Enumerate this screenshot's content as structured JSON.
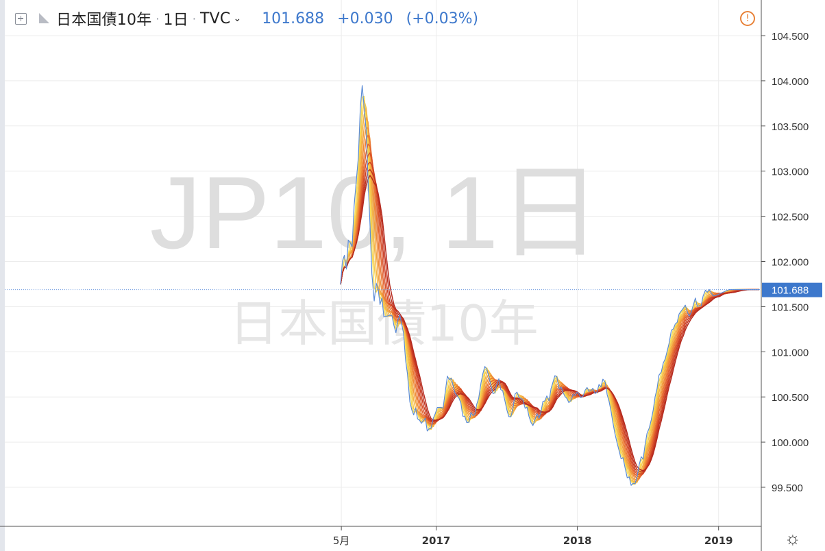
{
  "header": {
    "add_icon": "plus-square-icon",
    "flag_icon": "flag-icon",
    "symbol": "日本国債10年",
    "interval": "1日",
    "exchange": "TVC",
    "dropdown_icon": "chevron-down-icon",
    "last": "101.688",
    "change": "+0.030",
    "change_pct": "(+0.03%)",
    "alert_icon": "warning-circle-icon"
  },
  "watermark": {
    "line1": "JP10, 1日",
    "line2": "日本国債10年"
  },
  "price_axis": {
    "ticks": [
      "104.500",
      "104.000",
      "103.500",
      "103.000",
      "102.500",
      "102.000",
      "101.500",
      "101.000",
      "100.500",
      "100.000",
      "99.500"
    ],
    "current": "101.688"
  },
  "time_axis": {
    "ticks": [
      "5月",
      "2017",
      "2018",
      "2019"
    ]
  },
  "settings_icon": "gear-icon",
  "colors": {
    "price": "#5b8bd6",
    "accent": "#3d78cc",
    "ribbon_fast": "#f7dd55",
    "ribbon_slow": "#b52a1f",
    "alert": "#e8833a"
  },
  "chart_data": {
    "type": "line",
    "title": "日本国債10年",
    "ylim": [
      99.2,
      104.7
    ],
    "x_ticks": [
      "5月",
      "2017",
      "2018",
      "2019"
    ],
    "y_ticks": [
      104.5,
      104.0,
      103.5,
      103.0,
      102.5,
      102.0,
      101.5,
      101.0,
      100.5,
      100.0,
      99.5
    ],
    "last_value": 101.688,
    "series": [
      {
        "x": [
          "2016-04-29",
          "2016-05-04",
          "2016-05-09",
          "2016-05-14",
          "2016-05-19",
          "2016-05-24",
          "2016-05-29",
          "2016-06-03",
          "2016-06-09",
          "2016-06-14",
          "2016-06-19",
          "2016-06-24",
          "2016-06-29",
          "2016-07-04",
          "2016-07-09",
          "2016-07-14",
          "2016-07-19",
          "2016-07-25",
          "2016-07-30",
          "2016-08-04",
          "2016-08-09",
          "2016-08-14",
          "2016-08-19",
          "2016-08-24",
          "2016-08-29",
          "2016-09-03",
          "2016-09-09",
          "2016-09-14",
          "2016-09-19",
          "2016-09-24",
          "2016-09-29",
          "2016-10-04",
          "2016-10-09",
          "2016-10-14",
          "2016-10-19",
          "2016-10-25",
          "2016-10-30",
          "2016-11-04",
          "2016-11-09",
          "2016-11-14",
          "2016-11-19",
          "2016-11-24",
          "2016-11-29",
          "2016-12-04",
          "2016-12-09",
          "2016-12-14",
          "2016-12-19",
          "2016-12-25",
          "2016-12-30",
          "2017-01-04",
          "2017-01-09",
          "2017-01-14",
          "2017-01-19",
          "2017-01-24",
          "2017-01-30",
          "2017-02-04",
          "2017-02-09",
          "2017-02-14",
          "2017-02-19",
          "2017-02-24",
          "2017-03-01",
          "2017-03-06",
          "2017-03-11",
          "2017-03-16",
          "2017-03-21",
          "2017-03-27",
          "2017-04-01",
          "2017-04-06",
          "2017-04-11",
          "2017-04-16",
          "2017-04-21",
          "2017-04-27",
          "2017-05-02",
          "2017-05-07",
          "2017-05-12",
          "2017-05-17",
          "2017-05-22",
          "2017-05-28",
          "2017-06-02",
          "2017-06-07",
          "2017-06-12",
          "2017-06-17",
          "2017-06-22",
          "2017-06-28",
          "2017-07-03",
          "2017-07-08",
          "2017-07-13",
          "2017-07-18",
          "2017-07-24",
          "2017-07-29",
          "2017-08-03",
          "2017-08-08",
          "2017-08-13",
          "2017-08-19",
          "2017-08-24",
          "2017-08-29",
          "2017-09-03",
          "2017-09-08",
          "2017-09-13",
          "2017-09-19",
          "2017-09-24",
          "2017-09-29",
          "2017-10-04",
          "2017-10-09",
          "2017-10-14",
          "2017-10-20",
          "2017-10-25",
          "2017-10-30",
          "2017-11-04",
          "2017-11-09",
          "2017-11-15",
          "2017-11-20",
          "2017-11-25",
          "2017-11-30",
          "2017-12-05",
          "2017-12-10",
          "2017-12-16",
          "2017-12-21",
          "2017-12-26",
          "2017-12-31",
          "2018-01-05",
          "2018-01-10",
          "2018-01-16",
          "2018-01-21",
          "2018-01-26",
          "2018-01-31",
          "2018-02-05",
          "2018-02-10",
          "2018-02-16",
          "2018-02-21",
          "2018-02-26",
          "2018-03-03",
          "2018-03-08",
          "2018-03-14",
          "2018-03-19",
          "2018-03-24",
          "2018-03-29",
          "2018-04-03",
          "2018-04-08",
          "2018-04-14",
          "2018-04-19",
          "2018-04-24",
          "2018-04-29",
          "2018-05-04",
          "2018-05-10",
          "2018-05-15",
          "2018-05-20",
          "2018-05-25",
          "2018-05-30",
          "2018-06-04",
          "2018-06-10",
          "2018-06-15",
          "2018-06-20",
          "2018-06-25",
          "2018-06-30",
          "2018-07-06",
          "2018-07-11",
          "2018-07-16",
          "2018-07-21",
          "2018-07-26",
          "2018-07-31",
          "2018-08-06",
          "2018-08-11",
          "2018-08-16",
          "2018-08-21",
          "2018-08-26",
          "2018-09-01",
          "2018-09-06",
          "2018-09-11",
          "2018-09-16",
          "2018-09-21",
          "2018-09-26",
          "2018-10-02",
          "2018-10-07",
          "2018-10-12",
          "2018-10-17",
          "2018-10-22",
          "2018-10-28",
          "2018-11-02",
          "2018-11-07",
          "2018-11-12",
          "2018-11-17",
          "2018-11-22",
          "2018-11-28",
          "2018-12-03",
          "2018-12-08",
          "2018-12-13",
          "2018-12-18",
          "2018-12-23",
          "2018-12-29",
          "2019-01-03",
          "2019-01-08",
          "2019-01-13",
          "2019-01-18",
          "2019-01-23",
          "2019-01-29",
          "2019-02-03",
          "2019-02-08",
          "2019-02-13",
          "2019-02-18",
          "2019-02-24",
          "2019-03-01",
          "2019-03-06",
          "2019-03-11",
          "2019-03-16",
          "2019-03-21",
          "2019-03-27",
          "2019-04-01",
          "2019-04-06",
          "2019-04-11",
          "2019-04-16"
        ],
        "values": [
          101.746,
          102.004,
          102.068,
          101.915,
          102.237,
          102.209,
          102.164,
          102.617,
          102.914,
          103.153,
          103.692,
          103.947,
          103.708,
          103.452,
          102.916,
          102.421,
          101.862,
          101.562,
          101.759,
          101.699,
          101.523,
          101.599,
          101.386,
          101.394,
          101.396,
          101.406,
          101.398,
          101.291,
          101.211,
          101.343,
          101.41,
          101.307,
          101.204,
          100.906,
          100.753,
          100.448,
          100.358,
          100.301,
          100.377,
          100.257,
          100.243,
          100.208,
          100.239,
          100.265,
          100.123,
          100.147,
          100.153,
          100.266,
          100.319,
          100.383,
          100.383,
          100.384,
          100.373,
          100.538,
          100.73,
          100.692,
          100.706,
          100.628,
          100.541,
          100.514,
          100.487,
          100.434,
          100.287,
          100.286,
          100.217,
          100.221,
          100.329,
          100.295,
          100.306,
          100.42,
          100.485,
          100.656,
          100.761,
          100.837,
          100.807,
          100.731,
          100.637,
          100.537,
          100.546,
          100.638,
          100.701,
          100.581,
          100.569,
          100.453,
          100.355,
          100.282,
          100.28,
          100.36,
          100.532,
          100.553,
          100.493,
          100.485,
          100.471,
          100.375,
          100.386,
          100.285,
          100.22,
          100.183,
          100.244,
          100.314,
          100.263,
          100.336,
          100.45,
          100.456,
          100.511,
          100.457,
          100.594,
          100.662,
          100.735,
          100.723,
          100.588,
          100.608,
          100.55,
          100.505,
          100.483,
          100.437,
          100.463,
          100.53,
          100.515,
          100.553,
          100.533,
          100.491,
          100.512,
          100.573,
          100.605,
          100.562,
          100.569,
          100.596,
          100.537,
          100.556,
          100.638,
          100.609,
          100.697,
          100.661,
          100.525,
          100.451,
          100.344,
          100.214,
          100.095,
          99.984,
          99.904,
          99.815,
          99.828,
          99.72,
          99.604,
          99.615,
          99.521,
          99.543,
          99.539,
          99.609,
          99.752,
          99.838,
          99.811,
          99.969,
          100.095,
          100.158,
          100.248,
          100.355,
          100.503,
          100.591,
          100.741,
          100.776,
          100.876,
          100.92,
          101.005,
          101.091,
          101.239,
          101.253,
          101.308,
          101.326,
          101.419,
          101.449,
          101.483,
          101.517,
          101.445,
          101.393,
          101.434,
          101.523,
          101.595,
          101.502,
          101.509,
          101.51,
          101.617,
          101.681,
          101.659,
          101.688,
          101.65,
          101.62,
          101.62,
          101.63,
          101.64,
          101.65,
          101.66,
          101.67,
          101.68,
          101.688,
          101.688,
          101.688,
          101.688,
          101.688,
          101.688,
          101.688,
          101.688,
          101.688,
          101.688,
          101.688,
          101.688,
          101.688,
          101.688,
          101.688,
          101.688
        ]
      }
    ]
  }
}
